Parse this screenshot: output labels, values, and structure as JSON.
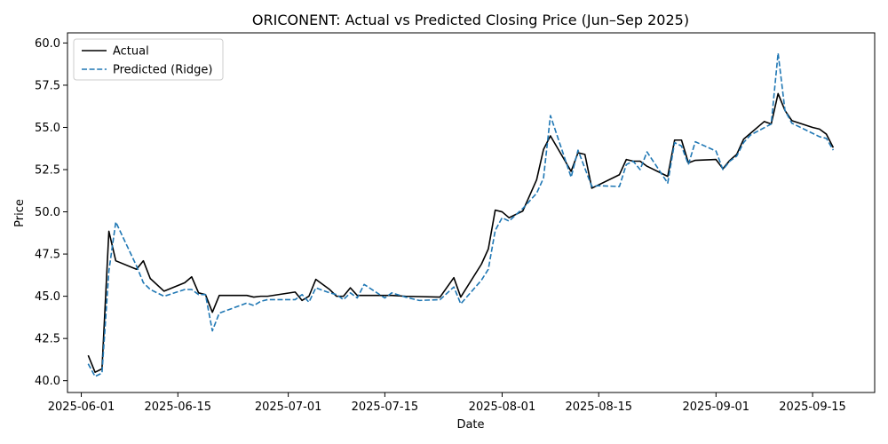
{
  "chart_data": {
    "type": "line",
    "title": "ORICONENT: Actual vs Predicted Closing Price (Jun–Sep 2025)",
    "xlabel": "Date",
    "ylabel": "Price",
    "xlim": [
      "2025-05-30",
      "2025-09-24"
    ],
    "ylim": [
      39.3,
      60.6
    ],
    "xticks": [
      "2025-06-01",
      "2025-06-15",
      "2025-07-01",
      "2025-07-15",
      "2025-08-01",
      "2025-08-15",
      "2025-09-01",
      "2025-09-15"
    ],
    "yticks": [
      "40.0",
      "42.5",
      "45.0",
      "47.5",
      "50.0",
      "52.5",
      "55.0",
      "57.5",
      "60.0"
    ],
    "legend_position": "upper-left",
    "grid": false,
    "series": [
      {
        "name": "Actual",
        "color": "#000000",
        "style": "solid",
        "points": [
          [
            "2025-06-02",
            41.5
          ],
          [
            "2025-06-03",
            40.5
          ],
          [
            "2025-06-04",
            40.7
          ],
          [
            "2025-06-05",
            48.85
          ],
          [
            "2025-06-06",
            47.1
          ],
          [
            "2025-06-09",
            46.6
          ],
          [
            "2025-06-10",
            47.1
          ],
          [
            "2025-06-11",
            46.05
          ],
          [
            "2025-06-13",
            45.3
          ],
          [
            "2025-06-16",
            45.8
          ],
          [
            "2025-06-17",
            46.15
          ],
          [
            "2025-06-18",
            45.2
          ],
          [
            "2025-06-19",
            45.1
          ],
          [
            "2025-06-20",
            44.05
          ],
          [
            "2025-06-21",
            45.05
          ],
          [
            "2025-06-25",
            45.05
          ],
          [
            "2025-06-26",
            44.95
          ],
          [
            "2025-06-27",
            45.0
          ],
          [
            "2025-06-28",
            45.0
          ],
          [
            "2025-07-02",
            45.25
          ],
          [
            "2025-07-03",
            44.75
          ],
          [
            "2025-07-04",
            45.0
          ],
          [
            "2025-07-05",
            46.0
          ],
          [
            "2025-07-07",
            45.4
          ],
          [
            "2025-07-08",
            45.0
          ],
          [
            "2025-07-09",
            45.0
          ],
          [
            "2025-07-10",
            45.5
          ],
          [
            "2025-07-11",
            45.05
          ],
          [
            "2025-07-15",
            45.05
          ],
          [
            "2025-07-16",
            45.05
          ],
          [
            "2025-07-18",
            45.0
          ],
          [
            "2025-07-23",
            44.95
          ],
          [
            "2025-07-25",
            46.1
          ],
          [
            "2025-07-26",
            44.95
          ],
          [
            "2025-07-29",
            46.9
          ],
          [
            "2025-07-30",
            47.8
          ],
          [
            "2025-07-31",
            50.1
          ],
          [
            "2025-08-01",
            50.0
          ],
          [
            "2025-08-02",
            49.65
          ],
          [
            "2025-08-04",
            50.05
          ],
          [
            "2025-08-06",
            51.9
          ],
          [
            "2025-08-07",
            53.7
          ],
          [
            "2025-08-08",
            54.5
          ],
          [
            "2025-08-11",
            52.4
          ],
          [
            "2025-08-12",
            53.5
          ],
          [
            "2025-08-13",
            53.4
          ],
          [
            "2025-08-14",
            51.4
          ],
          [
            "2025-08-18",
            52.2
          ],
          [
            "2025-08-19",
            53.1
          ],
          [
            "2025-08-20",
            53.0
          ],
          [
            "2025-08-21",
            53.0
          ],
          [
            "2025-08-22",
            52.7
          ],
          [
            "2025-08-25",
            52.1
          ],
          [
            "2025-08-26",
            54.25
          ],
          [
            "2025-08-27",
            54.25
          ],
          [
            "2025-08-28",
            52.9
          ],
          [
            "2025-08-29",
            53.05
          ],
          [
            "2025-09-01",
            53.1
          ],
          [
            "2025-09-02",
            52.55
          ],
          [
            "2025-09-03",
            53.05
          ],
          [
            "2025-09-04",
            53.4
          ],
          [
            "2025-09-05",
            54.3
          ],
          [
            "2025-09-08",
            55.35
          ],
          [
            "2025-09-09",
            55.2
          ],
          [
            "2025-09-10",
            57.0
          ],
          [
            "2025-09-11",
            56.0
          ],
          [
            "2025-09-12",
            55.4
          ],
          [
            "2025-09-15",
            55.0
          ],
          [
            "2025-09-16",
            54.9
          ],
          [
            "2025-09-17",
            54.6
          ],
          [
            "2025-09-18",
            53.8
          ]
        ]
      },
      {
        "name": "Predicted (Ridge)",
        "color": "#1f77b4",
        "style": "dashed",
        "points": [
          [
            "2025-06-02",
            41.0
          ],
          [
            "2025-06-03",
            40.25
          ],
          [
            "2025-06-04",
            40.45
          ],
          [
            "2025-06-05",
            46.5
          ],
          [
            "2025-06-06",
            49.4
          ],
          [
            "2025-06-09",
            46.8
          ],
          [
            "2025-06-10",
            45.8
          ],
          [
            "2025-06-11",
            45.4
          ],
          [
            "2025-06-13",
            45.0
          ],
          [
            "2025-06-16",
            45.4
          ],
          [
            "2025-06-17",
            45.4
          ],
          [
            "2025-06-18",
            45.1
          ],
          [
            "2025-06-19",
            45.1
          ],
          [
            "2025-06-20",
            42.95
          ],
          [
            "2025-06-21",
            44.0
          ],
          [
            "2025-06-25",
            44.6
          ],
          [
            "2025-06-26",
            44.45
          ],
          [
            "2025-06-27",
            44.7
          ],
          [
            "2025-06-28",
            44.8
          ],
          [
            "2025-07-02",
            44.8
          ],
          [
            "2025-07-03",
            45.1
          ],
          [
            "2025-07-04",
            44.65
          ],
          [
            "2025-07-05",
            45.5
          ],
          [
            "2025-07-07",
            45.2
          ],
          [
            "2025-07-08",
            45.1
          ],
          [
            "2025-07-09",
            44.8
          ],
          [
            "2025-07-10",
            45.2
          ],
          [
            "2025-07-11",
            44.9
          ],
          [
            "2025-07-12",
            45.7
          ],
          [
            "2025-07-15",
            44.9
          ],
          [
            "2025-07-16",
            45.2
          ],
          [
            "2025-07-18",
            44.95
          ],
          [
            "2025-07-20",
            44.75
          ],
          [
            "2025-07-23",
            44.8
          ],
          [
            "2025-07-25",
            45.55
          ],
          [
            "2025-07-26",
            44.55
          ],
          [
            "2025-07-29",
            45.95
          ],
          [
            "2025-07-30",
            46.6
          ],
          [
            "2025-07-31",
            48.9
          ],
          [
            "2025-08-01",
            49.65
          ],
          [
            "2025-08-02",
            49.45
          ],
          [
            "2025-08-04",
            50.2
          ],
          [
            "2025-08-06",
            51.1
          ],
          [
            "2025-08-07",
            52.0
          ],
          [
            "2025-08-08",
            55.7
          ],
          [
            "2025-08-11",
            52.05
          ],
          [
            "2025-08-12",
            53.65
          ],
          [
            "2025-08-14",
            51.5
          ],
          [
            "2025-08-15",
            51.55
          ],
          [
            "2025-08-18",
            51.5
          ],
          [
            "2025-08-19",
            52.8
          ],
          [
            "2025-08-20",
            53.0
          ],
          [
            "2025-08-21",
            52.5
          ],
          [
            "2025-08-22",
            53.55
          ],
          [
            "2025-08-25",
            51.7
          ],
          [
            "2025-08-26",
            54.1
          ],
          [
            "2025-08-27",
            53.9
          ],
          [
            "2025-08-28",
            52.8
          ],
          [
            "2025-08-29",
            54.15
          ],
          [
            "2025-09-01",
            53.6
          ],
          [
            "2025-09-02",
            52.5
          ],
          [
            "2025-09-03",
            53.0
          ],
          [
            "2025-09-04",
            53.3
          ],
          [
            "2025-09-05",
            54.1
          ],
          [
            "2025-09-06",
            54.55
          ],
          [
            "2025-09-09",
            55.2
          ],
          [
            "2025-09-10",
            59.4
          ],
          [
            "2025-09-11",
            56.0
          ],
          [
            "2025-09-12",
            55.25
          ],
          [
            "2025-09-15",
            54.65
          ],
          [
            "2025-09-16",
            54.45
          ],
          [
            "2025-09-17",
            54.35
          ],
          [
            "2025-09-18",
            53.65
          ]
        ]
      }
    ]
  }
}
